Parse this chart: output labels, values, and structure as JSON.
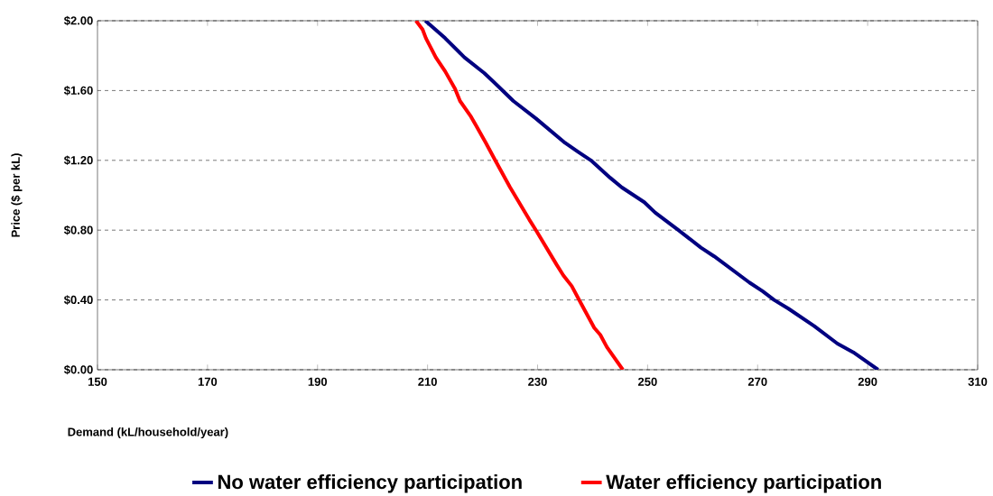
{
  "chart_data": {
    "type": "line",
    "xlabel": "Demand (kL/household/year)",
    "ylabel": "Price ($ per kL)",
    "xlim": [
      150,
      310
    ],
    "xticks": [
      150,
      170,
      190,
      210,
      230,
      250,
      270,
      290,
      310
    ],
    "ylim": [
      0,
      2
    ],
    "yticks": [
      {
        "value": 0,
        "label": "$0.00"
      },
      {
        "value": 0.4,
        "label": "$0.40"
      },
      {
        "value": 0.8,
        "label": "$0.80"
      },
      {
        "value": 1.2,
        "label": "$1.20"
      },
      {
        "value": 1.6,
        "label": "$1.60"
      },
      {
        "value": 2,
        "label": "$2.00"
      }
    ],
    "grid": "y",
    "legend": "bottom",
    "marker": "none",
    "line_style": "solid",
    "series": [
      {
        "name": "No water efficiency participation",
        "color": "#000080",
        "x": [
          209.6,
          213.2,
          216.7,
          220.3,
          222.0,
          225.6,
          229.7,
          235.0,
          237.3,
          239.7,
          243.2,
          245.3,
          249.4,
          251.4,
          255.6,
          259.7,
          262.1,
          268.5,
          270.9,
          273.0,
          275.6,
          280.3,
          284.5,
          287.4,
          291.9
        ],
        "values": [
          2.0,
          1.9,
          1.79,
          1.7,
          1.65,
          1.54,
          1.44,
          1.3,
          1.25,
          1.2,
          1.1,
          1.045,
          0.96,
          0.9,
          0.8,
          0.7,
          0.65,
          0.5,
          0.45,
          0.4,
          0.35,
          0.25,
          0.15,
          0.1,
          0.0
        ]
      },
      {
        "name": "Water efficiency participation",
        "color": "#ff0000",
        "x": [
          207.9,
          209.1,
          209.7,
          211.5,
          213.2,
          215.0,
          215.9,
          217.9,
          218.8,
          220.6,
          222.3,
          225.0,
          228.5,
          229.7,
          233.5,
          234.7,
          236.2,
          237.9,
          240.3,
          241.4,
          242.6,
          245.5
        ],
        "values": [
          2.0,
          1.95,
          1.9,
          1.79,
          1.71,
          1.61,
          1.54,
          1.45,
          1.4,
          1.3,
          1.2,
          1.045,
          0.86,
          0.8,
          0.6,
          0.54,
          0.48,
          0.38,
          0.24,
          0.2,
          0.13,
          0.0
        ]
      }
    ]
  }
}
